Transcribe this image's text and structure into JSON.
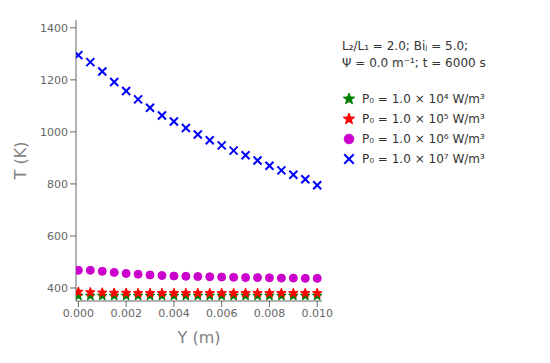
{
  "chart_data": {
    "type": "scatter",
    "title": "",
    "xlabel": "Y (m)",
    "ylabel": "T (K)",
    "xlim": [
      -0.0001,
      0.0102
    ],
    "ylim": [
      350,
      1430
    ],
    "xticks": [
      {
        "value": 0,
        "label": "0.000"
      },
      0.002,
      0.004,
      0.006,
      0.008,
      {
        "value": 0.01,
        "label": "0.010"
      }
    ],
    "yticks": [
      400,
      600,
      800,
      1000,
      1200,
      1400
    ],
    "grid": false,
    "annotations": [
      "L₂/L₁ = 2.0; Biⱼ = 5.0;",
      "Ψ = 0.0 m⁻¹; t = 6000 s"
    ],
    "x": [
      0.0,
      0.0005,
      0.001,
      0.0015,
      0.002,
      0.0025,
      0.003,
      0.0035,
      0.004,
      0.0045,
      0.005,
      0.0055,
      0.006,
      0.0065,
      0.007,
      0.0075,
      0.008,
      0.0085,
      0.009,
      0.0095,
      0.01
    ],
    "series": [
      {
        "name": "P₀ = 1.0 × 10⁴ W/m³",
        "color": "#008000",
        "marker": "star",
        "values": [
          370,
          370,
          370,
          370,
          370,
          370,
          370,
          370,
          370,
          370,
          370,
          370,
          370,
          370,
          370,
          370,
          370,
          370,
          370,
          370,
          370
        ]
      },
      {
        "name": "P₀ = 1.0 × 10⁵ W/m³",
        "color": "#ff0000",
        "marker": "star",
        "values": [
          385,
          383,
          382,
          381,
          381,
          380,
          380,
          380,
          380,
          380,
          380,
          380,
          380,
          380,
          380,
          380,
          380,
          380,
          380,
          380,
          380
        ]
      },
      {
        "name": "P₀ = 1.0 × 10⁶ W/m³",
        "color": "#cc00cc",
        "marker": "circle",
        "values": [
          468,
          468,
          464,
          460,
          456,
          453,
          450,
          448,
          446,
          445,
          444,
          443,
          442,
          441,
          440,
          440,
          439,
          438,
          438,
          437,
          437
        ]
      },
      {
        "name": "P₀ = 1.0 × 10⁷ W/m³",
        "color": "#0000ff",
        "marker": "x",
        "values": [
          1295,
          1268,
          1232,
          1192,
          1157,
          1125,
          1093,
          1063,
          1040,
          1015,
          990,
          968,
          948,
          928,
          910,
          890,
          870,
          852,
          835,
          818,
          795
        ]
      }
    ]
  }
}
